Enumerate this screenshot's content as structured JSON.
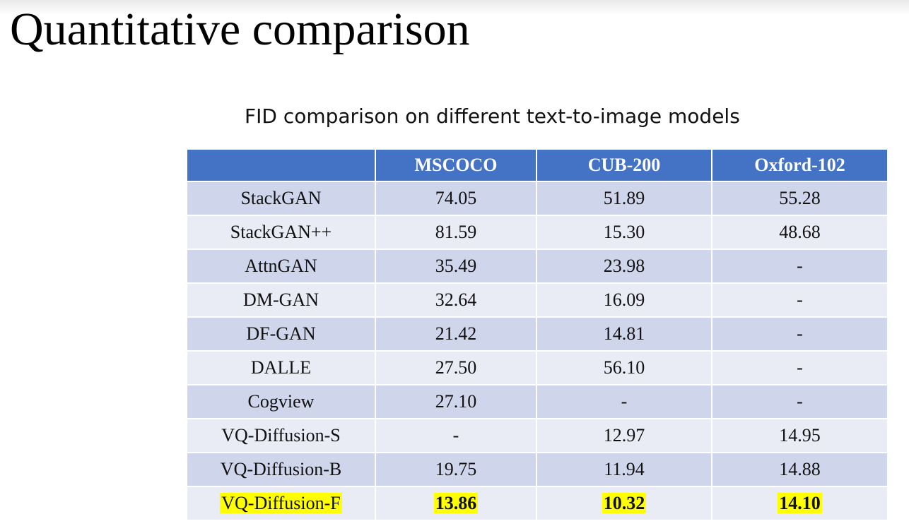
{
  "slide": {
    "title": "Quantitative comparison",
    "subtitle": "FID comparison on different text-to-image models"
  },
  "table": {
    "headers": [
      "",
      "MSCOCO",
      "CUB-200",
      "Oxford-102"
    ],
    "rows": [
      [
        "StackGAN",
        "74.05",
        "51.89",
        "55.28"
      ],
      [
        "StackGAN++",
        "81.59",
        "15.30",
        "48.68"
      ],
      [
        "AttnGAN",
        "35.49",
        "23.98",
        "-"
      ],
      [
        "DM-GAN",
        "32.64",
        "16.09",
        "-"
      ],
      [
        "DF-GAN",
        "21.42",
        "14.81",
        "-"
      ],
      [
        "DALLE",
        "27.50",
        "56.10",
        "-"
      ],
      [
        "Cogview",
        "27.10",
        "-",
        "-"
      ],
      [
        "VQ-Diffusion-S",
        "-",
        "12.97",
        "14.95"
      ],
      [
        "VQ-Diffusion-B",
        "19.75",
        "11.94",
        "14.88"
      ],
      [
        "VQ-Diffusion-F",
        "13.86",
        "10.32",
        "14.10"
      ]
    ],
    "highlighted_row": "VQ-Diffusion-F"
  },
  "colors": {
    "header_bg": "#4472c4",
    "row_band_dark": "#cfd5ea",
    "row_band_light": "#e9ebf5",
    "highlight": "#ffff00"
  }
}
